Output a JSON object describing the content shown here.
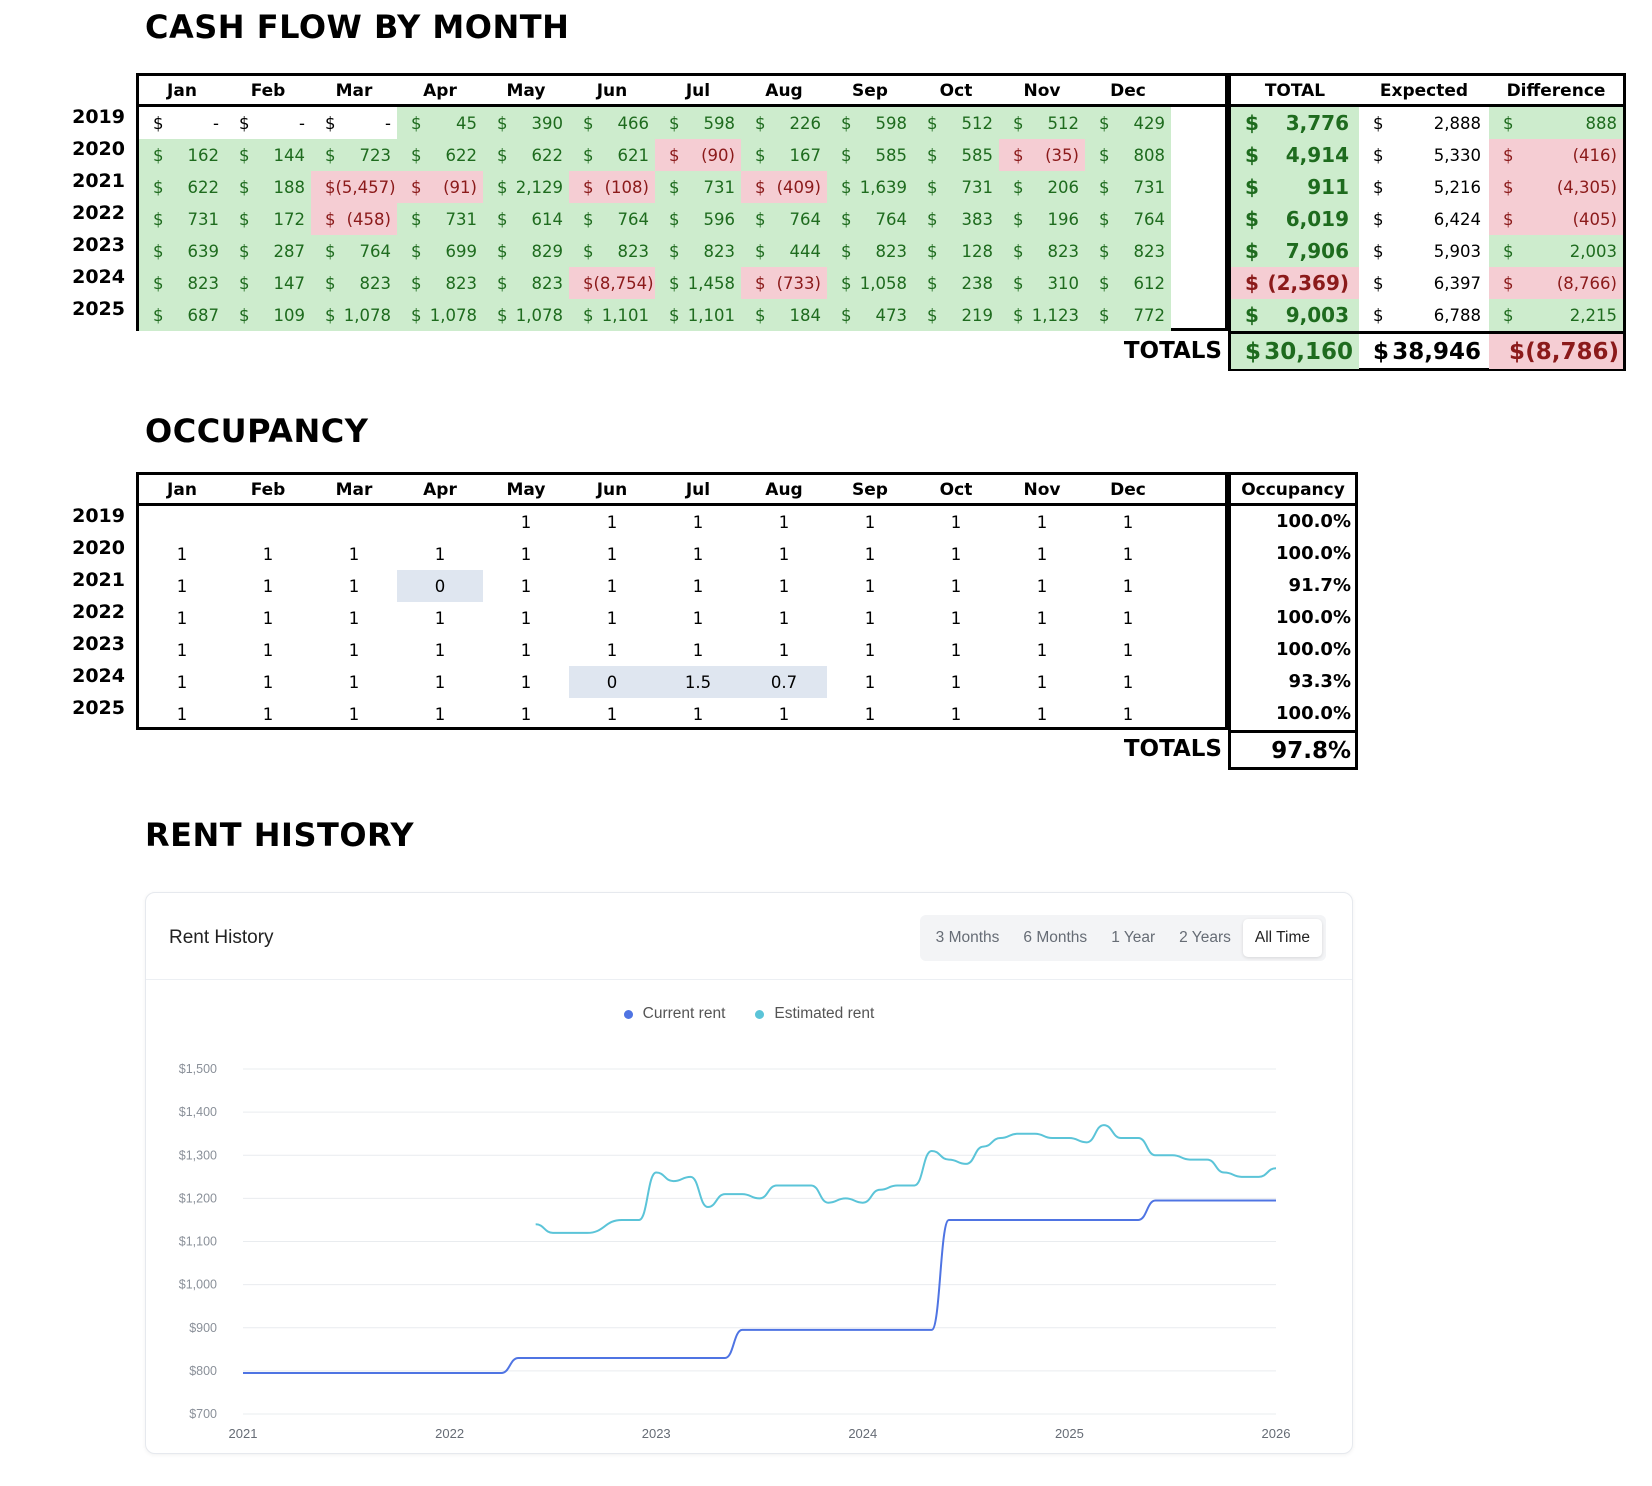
{
  "cashflow": {
    "title": "CASH FLOW BY MONTH",
    "months": [
      "Jan",
      "Feb",
      "Mar",
      "Apr",
      "May",
      "Jun",
      "Jul",
      "Aug",
      "Sep",
      "Oct",
      "Nov",
      "Dec"
    ],
    "summary_headers": [
      "TOTAL",
      "Expected",
      "Difference"
    ],
    "rows": [
      {
        "year": "2019",
        "cells": [
          "-",
          "-",
          "-",
          "45",
          "390",
          "466",
          "598",
          "226",
          "598",
          "512",
          "512",
          "429"
        ],
        "neg": [],
        "blank": [
          0,
          1,
          2
        ],
        "total": "3,776",
        "total_neg": false,
        "expected": "2,888",
        "diff": "888",
        "diff_neg": false
      },
      {
        "year": "2020",
        "cells": [
          "162",
          "144",
          "723",
          "622",
          "622",
          "621",
          "(90)",
          "167",
          "585",
          "585",
          "(35)",
          "808"
        ],
        "neg": [
          6,
          10
        ],
        "blank": [],
        "total": "4,914",
        "total_neg": false,
        "expected": "5,330",
        "diff": "(416)",
        "diff_neg": true
      },
      {
        "year": "2021",
        "cells": [
          "622",
          "188",
          "(5,457)",
          "(91)",
          "2,129",
          "(108)",
          "731",
          "(409)",
          "1,639",
          "731",
          "206",
          "731"
        ],
        "neg": [
          2,
          3,
          5,
          7
        ],
        "blank": [],
        "total": "911",
        "total_neg": false,
        "expected": "5,216",
        "diff": "(4,305)",
        "diff_neg": true
      },
      {
        "year": "2022",
        "cells": [
          "731",
          "172",
          "(458)",
          "731",
          "614",
          "764",
          "596",
          "764",
          "764",
          "383",
          "196",
          "764"
        ],
        "neg": [
          2
        ],
        "blank": [],
        "total": "6,019",
        "total_neg": false,
        "expected": "6,424",
        "diff": "(405)",
        "diff_neg": true
      },
      {
        "year": "2023",
        "cells": [
          "639",
          "287",
          "764",
          "699",
          "829",
          "823",
          "823",
          "444",
          "823",
          "128",
          "823",
          "823"
        ],
        "neg": [],
        "blank": [],
        "total": "7,906",
        "total_neg": false,
        "expected": "5,903",
        "diff": "2,003",
        "diff_neg": false
      },
      {
        "year": "2024",
        "cells": [
          "823",
          "147",
          "823",
          "823",
          "823",
          "(8,754)",
          "1,458",
          "(733)",
          "1,058",
          "238",
          "310",
          "612"
        ],
        "neg": [
          5,
          7
        ],
        "blank": [],
        "total": "(2,369)",
        "total_neg": true,
        "expected": "6,397",
        "diff": "(8,766)",
        "diff_neg": true
      },
      {
        "year": "2025",
        "cells": [
          "687",
          "109",
          "1,078",
          "1,078",
          "1,078",
          "1,101",
          "1,101",
          "184",
          "473",
          "219",
          "1,123",
          "772"
        ],
        "neg": [],
        "blank": [],
        "total": "9,003",
        "total_neg": false,
        "expected": "6,788",
        "diff": "2,215",
        "diff_neg": false
      }
    ],
    "totals_label": "TOTALS",
    "totals": {
      "total": "30,160",
      "expected": "38,946",
      "diff": "(8,786)"
    },
    "currency": "$"
  },
  "occupancy": {
    "title": "OCCUPANCY",
    "months": [
      "Jan",
      "Feb",
      "Mar",
      "Apr",
      "May",
      "Jun",
      "Jul",
      "Aug",
      "Sep",
      "Oct",
      "Nov",
      "Dec"
    ],
    "summary_header": "Occupancy",
    "rows": [
      {
        "year": "2019",
        "cells": [
          "",
          "",
          "",
          "",
          "1",
          "1",
          "1",
          "1",
          "1",
          "1",
          "1",
          "1"
        ],
        "hl": [],
        "pct": "100.0%"
      },
      {
        "year": "2020",
        "cells": [
          "1",
          "1",
          "1",
          "1",
          "1",
          "1",
          "1",
          "1",
          "1",
          "1",
          "1",
          "1"
        ],
        "hl": [],
        "pct": "100.0%"
      },
      {
        "year": "2021",
        "cells": [
          "1",
          "1",
          "1",
          "0",
          "1",
          "1",
          "1",
          "1",
          "1",
          "1",
          "1",
          "1"
        ],
        "hl": [
          3
        ],
        "pct": "91.7%"
      },
      {
        "year": "2022",
        "cells": [
          "1",
          "1",
          "1",
          "1",
          "1",
          "1",
          "1",
          "1",
          "1",
          "1",
          "1",
          "1"
        ],
        "hl": [],
        "pct": "100.0%"
      },
      {
        "year": "2023",
        "cells": [
          "1",
          "1",
          "1",
          "1",
          "1",
          "1",
          "1",
          "1",
          "1",
          "1",
          "1",
          "1"
        ],
        "hl": [],
        "pct": "100.0%"
      },
      {
        "year": "2024",
        "cells": [
          "1",
          "1",
          "1",
          "1",
          "1",
          "0",
          "1.5",
          "0.7",
          "1",
          "1",
          "1",
          "1"
        ],
        "hl": [
          5,
          6,
          7
        ],
        "pct": "93.3%"
      },
      {
        "year": "2025",
        "cells": [
          "1",
          "1",
          "1",
          "1",
          "1",
          "1",
          "1",
          "1",
          "1",
          "1",
          "1",
          "1"
        ],
        "hl": [],
        "pct": "100.0%"
      }
    ],
    "totals_label": "TOTALS",
    "total_pct": "97.8%"
  },
  "rent_history": {
    "section_title": "RENT HISTORY",
    "card_title": "Rent History",
    "ranges": [
      "3 Months",
      "6 Months",
      "1 Year",
      "2 Years",
      "All Time"
    ],
    "active_range": "All Time",
    "colors": {
      "current": "#4f74e3",
      "estimated": "#5bc4d8",
      "grid": "#e9ecef",
      "axis_text": "#8a9099"
    }
  },
  "chart_data": {
    "type": "line",
    "xlabel": "",
    "ylabel": "",
    "x_ticks": [
      "2021",
      "2022",
      "2023",
      "2024",
      "2025",
      "2026"
    ],
    "y_ticks": [
      "$700",
      "$800",
      "$900",
      "$1,000",
      "$1,100",
      "$1,200",
      "$1,300",
      "$1,400",
      "$1,500"
    ],
    "ylim": [
      700,
      1500
    ],
    "xlim": [
      "2021-01",
      "2026-01"
    ],
    "legend_position": "top-center",
    "series": [
      {
        "name": "Current rent",
        "x": [
          "2021-01",
          "2022-04",
          "2022-05",
          "2023-05",
          "2023-06",
          "2024-05",
          "2024-06",
          "2025-05",
          "2025-06",
          "2026-01"
        ],
        "values": [
          795,
          795,
          830,
          830,
          895,
          895,
          1150,
          1150,
          1195,
          1195
        ]
      },
      {
        "name": "Estimated rent",
        "x": [
          "2022-06",
          "2022-07",
          "2022-09",
          "2022-11",
          "2022-12",
          "2023-01",
          "2023-02",
          "2023-03",
          "2023-04",
          "2023-05",
          "2023-06",
          "2023-07",
          "2023-08",
          "2023-09",
          "2023-10",
          "2023-11",
          "2023-12",
          "2024-01",
          "2024-02",
          "2024-03",
          "2024-04",
          "2024-05",
          "2024-06",
          "2024-07",
          "2024-08",
          "2024-09",
          "2024-10",
          "2024-11",
          "2024-12",
          "2025-01",
          "2025-02",
          "2025-03",
          "2025-04",
          "2025-05",
          "2025-06",
          "2025-07",
          "2025-08",
          "2025-09",
          "2025-10",
          "2025-11",
          "2025-12",
          "2026-01"
        ],
        "values": [
          1140,
          1120,
          1120,
          1150,
          1150,
          1260,
          1240,
          1250,
          1180,
          1210,
          1210,
          1200,
          1230,
          1230,
          1230,
          1190,
          1200,
          1190,
          1220,
          1230,
          1230,
          1310,
          1290,
          1280,
          1320,
          1340,
          1350,
          1350,
          1340,
          1340,
          1330,
          1370,
          1340,
          1340,
          1300,
          1300,
          1290,
          1290,
          1260,
          1250,
          1250,
          1270
        ]
      }
    ]
  }
}
